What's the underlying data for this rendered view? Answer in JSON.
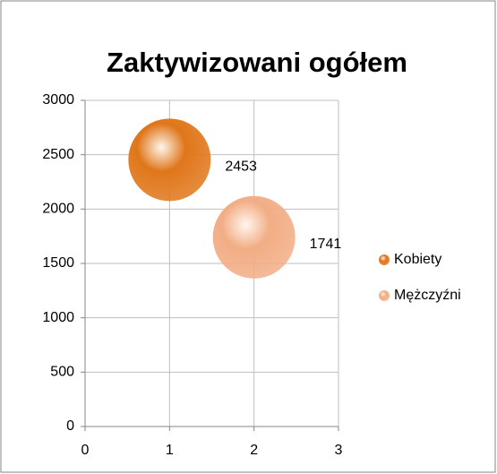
{
  "chart_data": {
    "type": "bubble",
    "title": "Zaktywizowani ogółem",
    "series": [
      {
        "name": "Kobiety",
        "color": "#e0761a",
        "x": [
          1
        ],
        "values": [
          2453
        ]
      },
      {
        "name": "Mężczyźni",
        "color": "#f2ad85",
        "x": [
          2
        ],
        "values": [
          1741
        ]
      }
    ],
    "xlim": [
      0,
      3
    ],
    "xticks": [
      0,
      1,
      2,
      3
    ],
    "ylim": [
      0,
      3000
    ],
    "yticks": [
      0,
      500,
      1000,
      1500,
      2000,
      2500,
      3000
    ],
    "grid": true,
    "legend": "right",
    "data_labels": true
  }
}
